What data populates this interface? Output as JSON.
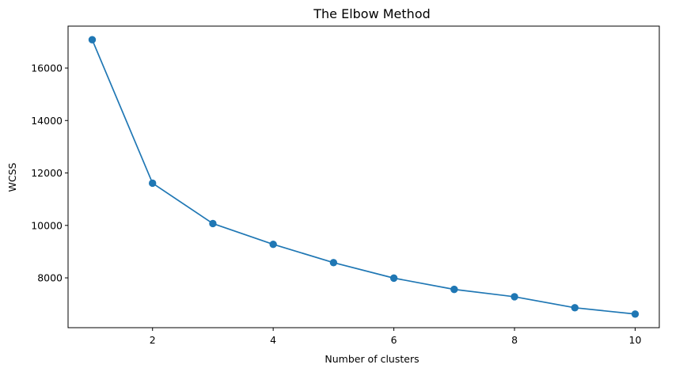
{
  "chart_data": {
    "type": "line",
    "title": "The Elbow Method",
    "xlabel": "Number of clusters",
    "ylabel": "WCSS",
    "x": [
      1,
      2,
      3,
      4,
      5,
      6,
      7,
      8,
      9,
      10
    ],
    "series": [
      {
        "values": [
          17080,
          11610,
          10070,
          9280,
          8580,
          7990,
          7560,
          7280,
          6860,
          6620
        ],
        "color": "#1f77b4",
        "marker": "circle"
      }
    ],
    "xlim": [
      0.6,
      10.4
    ],
    "ylim": [
      6100,
      17600
    ],
    "xticks": [
      2,
      4,
      6,
      8,
      10
    ],
    "yticks": [
      8000,
      10000,
      12000,
      14000,
      16000
    ],
    "grid": false,
    "legend": "none"
  }
}
